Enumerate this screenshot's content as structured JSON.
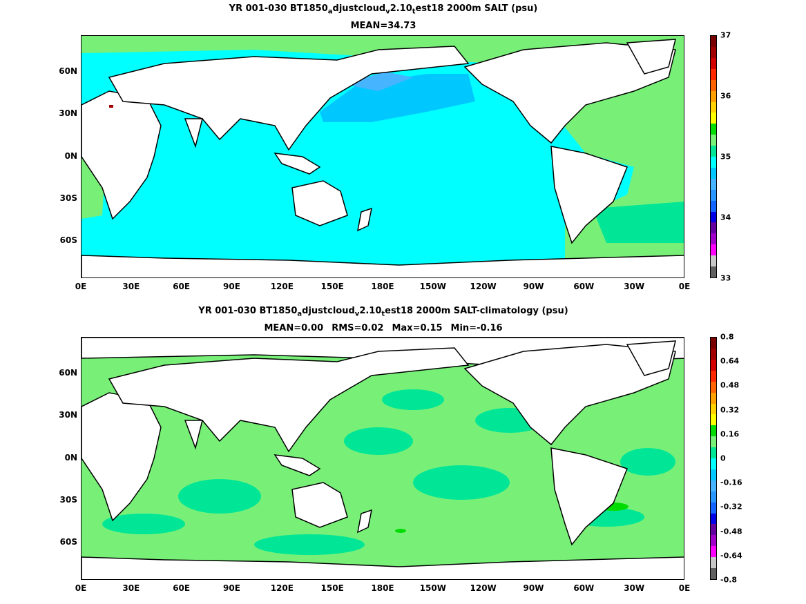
{
  "top": {
    "title": {
      "a": "YR 001-030 BT1850",
      "s1": "a",
      "b": "djustcloud",
      "s2": "v",
      "c": "2.10",
      "s3": "t",
      "d": "est18 2000m SALT (psu)"
    },
    "subtitle": "MEAN=34.73",
    "colorbar": {
      "colors": [
        "#606060",
        "#c8c8c8",
        "#ff00ff",
        "#a000c8",
        "#6400a0",
        "#0000e6",
        "#1464ff",
        "#2896ff",
        "#46b4ff",
        "#00c8ff",
        "#00ffff",
        "#00e696",
        "#78f078",
        "#00dc00",
        "#ffff00",
        "#ffd200",
        "#ffa000",
        "#ff6400",
        "#ff2800",
        "#d20000",
        "#a00000",
        "#780000"
      ],
      "labels": [
        "33",
        "34",
        "35",
        "36",
        "37"
      ],
      "ocean_colors": {
        "pacific_north": "#00c8ff",
        "pacific_nw": "#46b4ff",
        "ocean": "#00ffff",
        "atlantic": "#78f078",
        "atlantic_deep": "#00e696",
        "med": "#a00000"
      }
    }
  },
  "bottom": {
    "title": {
      "a": "YR 001-030 BT1850",
      "s1": "a",
      "b": "djustcloud",
      "s2": "v",
      "c": "2.10",
      "s3": "t",
      "d": "est18 2000m SALT-climatology (psu)"
    },
    "stats": {
      "mean": "MEAN=0.00",
      "rms": "RMS=0.02",
      "max": "Max=0.15",
      "min": "Min=-0.16"
    },
    "colorbar": {
      "colors": [
        "#606060",
        "#c8c8c8",
        "#ff00ff",
        "#a000c8",
        "#6400a0",
        "#0000e6",
        "#1464ff",
        "#2896ff",
        "#46b4ff",
        "#00c8ff",
        "#00ffff",
        "#00e696",
        "#78f078",
        "#00dc00",
        "#ffff00",
        "#ffd200",
        "#ffa000",
        "#ff6400",
        "#ff2800",
        "#d20000",
        "#a00000",
        "#780000"
      ],
      "labels": [
        "-0.8",
        "-0.64",
        "-0.48",
        "-0.32",
        "-0.16",
        "0",
        "0.16",
        "0.32",
        "0.48",
        "0.64",
        "0.8"
      ],
      "ocean_colors": {
        "ocean": "#78f078",
        "patch": "#00e696",
        "bright": "#00dc00"
      }
    }
  },
  "axes": {
    "x_labels": [
      "0E",
      "30E",
      "60E",
      "90E",
      "120E",
      "150E",
      "180E",
      "150W",
      "120W",
      "90W",
      "60W",
      "30W",
      "0E"
    ],
    "y_labels": [
      "60N",
      "30N",
      "0N",
      "30S",
      "60S"
    ]
  }
}
